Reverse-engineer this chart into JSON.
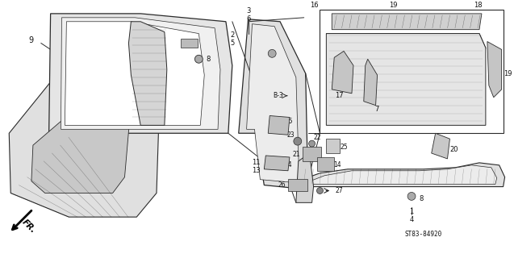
{
  "bg_color": "#ffffff",
  "part_number_code": "ST83-84920",
  "fr_arrow_text": "FR.",
  "line_color": "#2a2a2a",
  "text_color": "#111111",
  "gray_fill": "#cccccc",
  "light_gray": "#e8e8e8"
}
